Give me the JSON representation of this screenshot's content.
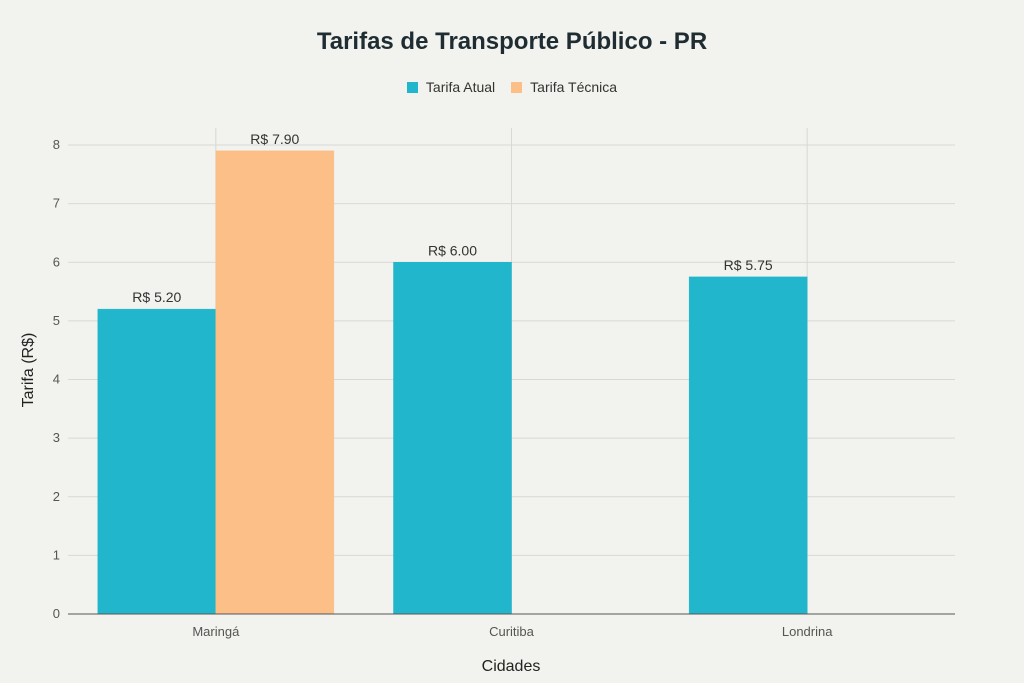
{
  "chart_data": {
    "type": "bar",
    "title": "Tarifas de Transporte Público - PR",
    "xlabel": "Cidades",
    "ylabel": "Tarifa (R$)",
    "categories": [
      "Maringá",
      "Curitiba",
      "Londrina"
    ],
    "ylim": [
      0,
      8.5
    ],
    "yticks": [
      0,
      1,
      2,
      3,
      4,
      5,
      6,
      7,
      8
    ],
    "series": [
      {
        "name": "Tarifa Atual",
        "values": [
          5.2,
          6.0,
          5.75
        ],
        "labels": [
          "R$ 5.20",
          "R$ 6.00",
          "R$ 5.75"
        ],
        "color": "#21b6cb"
      },
      {
        "name": "Tarifa Técnica",
        "values": [
          7.9,
          null,
          null
        ],
        "labels": [
          "R$ 7.90",
          "",
          ""
        ],
        "color": "#fbbf87"
      }
    ],
    "legend_position": "top-center",
    "grid": true
  }
}
